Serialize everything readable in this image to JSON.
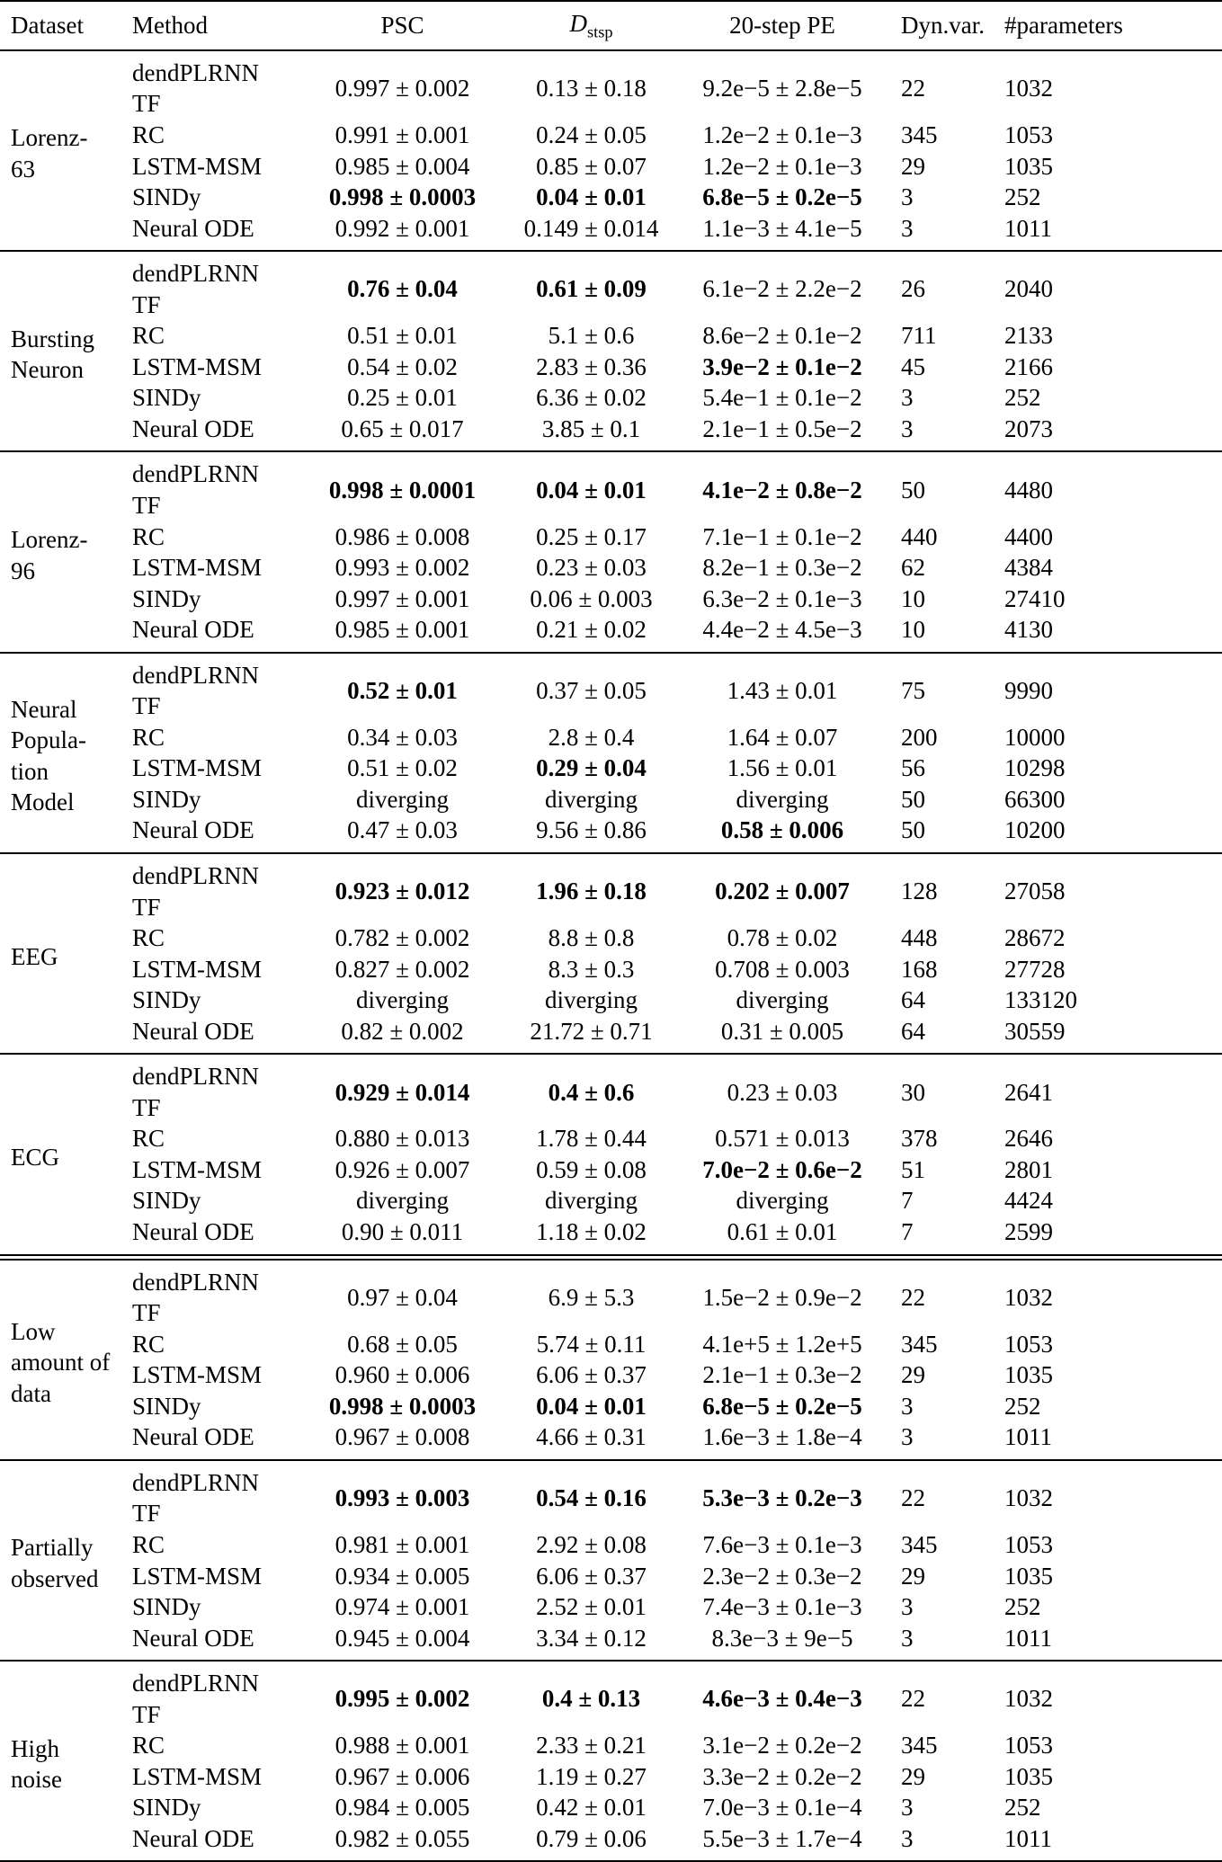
{
  "table": {
    "headers": {
      "dataset": "Dataset",
      "method": "Method",
      "psc": "PSC",
      "dstsp_main": "D",
      "dstsp_sub": "stsp",
      "pe": "20-step PE",
      "dynvar": "Dyn.var.",
      "parameters": "#parameters"
    },
    "double_rule_before_group": 6,
    "groups": [
      {
        "dataset": "Lorenz-\n63",
        "rows": [
          {
            "method": "dendPLRNN TF",
            "psc": "0.997 ± 0.002",
            "dstsp": "0.13 ± 0.18",
            "pe": "9.2e−5 ± 2.8e−5",
            "dynvar": "22",
            "params": "1032",
            "bold": [
              false,
              false,
              false
            ]
          },
          {
            "method": "RC",
            "psc": "0.991 ± 0.001",
            "dstsp": "0.24 ± 0.05",
            "pe": "1.2e−2 ± 0.1e−3",
            "dynvar": "345",
            "params": "1053",
            "bold": [
              false,
              false,
              false
            ]
          },
          {
            "method": "LSTM-MSM",
            "psc": "0.985 ± 0.004",
            "dstsp": "0.85 ± 0.07",
            "pe": "1.2e−2 ± 0.1e−3",
            "dynvar": "29",
            "params": "1035",
            "bold": [
              false,
              false,
              false
            ]
          },
          {
            "method": "SINDy",
            "psc": "0.998 ± 0.0003",
            "dstsp": "0.04 ± 0.01",
            "pe": "6.8e−5 ± 0.2e−5",
            "dynvar": "3",
            "params": "252",
            "bold": [
              true,
              true,
              true
            ]
          },
          {
            "method": "Neural ODE",
            "psc": "0.992 ± 0.001",
            "dstsp": "0.149 ± 0.014",
            "pe": "1.1e−3 ± 4.1e−5",
            "dynvar": "3",
            "params": "1011",
            "bold": [
              false,
              false,
              false
            ]
          }
        ]
      },
      {
        "dataset": "Bursting\nNeuron",
        "rows": [
          {
            "method": "dendPLRNN TF",
            "psc": "0.76 ± 0.04",
            "dstsp": "0.61 ± 0.09",
            "pe": "6.1e−2 ± 2.2e−2",
            "dynvar": "26",
            "params": "2040",
            "bold": [
              true,
              true,
              false
            ]
          },
          {
            "method": "RC",
            "psc": "0.51 ± 0.01",
            "dstsp": "5.1 ± 0.6",
            "pe": "8.6e−2 ± 0.1e−2",
            "dynvar": "711",
            "params": "2133",
            "bold": [
              false,
              false,
              false
            ]
          },
          {
            "method": "LSTM-MSM",
            "psc": "0.54 ± 0.02",
            "dstsp": "2.83 ± 0.36",
            "pe": "3.9e−2 ± 0.1e−2",
            "dynvar": "45",
            "params": "2166",
            "bold": [
              false,
              false,
              true
            ]
          },
          {
            "method": "SINDy",
            "psc": "0.25 ± 0.01",
            "dstsp": "6.36 ± 0.02",
            "pe": "5.4e−1 ± 0.1e−2",
            "dynvar": "3",
            "params": "252",
            "bold": [
              false,
              false,
              false
            ]
          },
          {
            "method": "Neural ODE",
            "psc": "0.65 ± 0.017",
            "dstsp": "3.85 ± 0.1",
            "pe": "2.1e−1 ± 0.5e−2",
            "dynvar": "3",
            "params": "2073",
            "bold": [
              false,
              false,
              false
            ]
          }
        ]
      },
      {
        "dataset": "Lorenz-\n96",
        "rows": [
          {
            "method": "dendPLRNN TF",
            "psc": "0.998 ± 0.0001",
            "dstsp": "0.04 ± 0.01",
            "pe": "4.1e−2 ± 0.8e−2",
            "dynvar": "50",
            "params": "4480",
            "bold": [
              true,
              true,
              true
            ]
          },
          {
            "method": "RC",
            "psc": "0.986 ± 0.008",
            "dstsp": "0.25 ± 0.17",
            "pe": "7.1e−1 ± 0.1e−2",
            "dynvar": "440",
            "params": "4400",
            "bold": [
              false,
              false,
              false
            ]
          },
          {
            "method": "LSTM-MSM",
            "psc": "0.993 ± 0.002",
            "dstsp": "0.23 ± 0.03",
            "pe": "8.2e−1 ± 0.3e−2",
            "dynvar": "62",
            "params": "4384",
            "bold": [
              false,
              false,
              false
            ]
          },
          {
            "method": "SINDy",
            "psc": "0.997 ± 0.001",
            "dstsp": "0.06 ± 0.003",
            "pe": "6.3e−2 ± 0.1e−3",
            "dynvar": "10",
            "params": "27410",
            "bold": [
              false,
              false,
              false
            ]
          },
          {
            "method": "Neural ODE",
            "psc": "0.985 ± 0.001",
            "dstsp": "0.21 ± 0.02",
            "pe": "4.4e−2 ± 4.5e−3",
            "dynvar": "10",
            "params": "4130",
            "bold": [
              false,
              false,
              false
            ]
          }
        ]
      },
      {
        "dataset": "Neural\nPopula-\ntion\nModel",
        "rows": [
          {
            "method": "dendPLRNN TF",
            "psc": "0.52 ± 0.01",
            "dstsp": "0.37 ± 0.05",
            "pe": "1.43 ± 0.01",
            "dynvar": "75",
            "params": "9990",
            "bold": [
              true,
              false,
              false
            ]
          },
          {
            "method": "RC",
            "psc": "0.34 ± 0.03",
            "dstsp": "2.8 ± 0.4",
            "pe": "1.64 ± 0.07",
            "dynvar": "200",
            "params": "10000",
            "bold": [
              false,
              false,
              false
            ]
          },
          {
            "method": "LSTM-MSM",
            "psc": "0.51 ± 0.02",
            "dstsp": "0.29 ± 0.04",
            "pe": "1.56 ± 0.01",
            "dynvar": "56",
            "params": "10298",
            "bold": [
              false,
              true,
              false
            ]
          },
          {
            "method": "SINDy",
            "psc": "diverging",
            "dstsp": "diverging",
            "pe": "diverging",
            "dynvar": "50",
            "params": "66300",
            "bold": [
              false,
              false,
              false
            ]
          },
          {
            "method": "Neural ODE",
            "psc": "0.47 ± 0.03",
            "dstsp": "9.56 ± 0.86",
            "pe": "0.58 ± 0.006",
            "dynvar": "50",
            "params": "10200",
            "bold": [
              false,
              false,
              true
            ]
          }
        ]
      },
      {
        "dataset": "EEG",
        "rows": [
          {
            "method": "dendPLRNN TF",
            "psc": "0.923 ± 0.012",
            "dstsp": "1.96 ± 0.18",
            "pe": "0.202 ± 0.007",
            "dynvar": "128",
            "params": "27058",
            "bold": [
              true,
              true,
              true
            ]
          },
          {
            "method": "RC",
            "psc": "0.782 ± 0.002",
            "dstsp": "8.8 ± 0.8",
            "pe": "0.78 ± 0.02",
            "dynvar": "448",
            "params": "28672",
            "bold": [
              false,
              false,
              false
            ]
          },
          {
            "method": "LSTM-MSM",
            "psc": "0.827 ± 0.002",
            "dstsp": "8.3 ± 0.3",
            "pe": "0.708 ± 0.003",
            "dynvar": "168",
            "params": "27728",
            "bold": [
              false,
              false,
              false
            ]
          },
          {
            "method": "SINDy",
            "psc": "diverging",
            "dstsp": "diverging",
            "pe": "diverging",
            "dynvar": "64",
            "params": "133120",
            "bold": [
              false,
              false,
              false
            ]
          },
          {
            "method": "Neural ODE",
            "psc": "0.82 ± 0.002",
            "dstsp": "21.72 ± 0.71",
            "pe": "0.31 ± 0.005",
            "dynvar": "64",
            "params": "30559",
            "bold": [
              false,
              false,
              false
            ]
          }
        ]
      },
      {
        "dataset": "ECG",
        "rows": [
          {
            "method": "dendPLRNN TF",
            "psc": "0.929 ± 0.014",
            "dstsp": "0.4 ± 0.6",
            "pe": "0.23 ± 0.03",
            "dynvar": "30",
            "params": "2641",
            "bold": [
              true,
              true,
              false
            ]
          },
          {
            "method": "RC",
            "psc": "0.880 ± 0.013",
            "dstsp": "1.78 ± 0.44",
            "pe": "0.571 ± 0.013",
            "dynvar": "378",
            "params": "2646",
            "bold": [
              false,
              false,
              false
            ]
          },
          {
            "method": "LSTM-MSM",
            "psc": "0.926 ± 0.007",
            "dstsp": "0.59 ± 0.08",
            "pe": "7.0e−2 ± 0.6e−2",
            "dynvar": "51",
            "params": "2801",
            "bold": [
              false,
              false,
              true
            ]
          },
          {
            "method": "SINDy",
            "psc": "diverging",
            "dstsp": "diverging",
            "pe": "diverging",
            "dynvar": "7",
            "params": "4424",
            "bold": [
              false,
              false,
              false
            ]
          },
          {
            "method": "Neural ODE",
            "psc": "0.90 ± 0.011",
            "dstsp": "1.18 ± 0.02",
            "pe": "0.61 ± 0.01",
            "dynvar": "7",
            "params": "2599",
            "bold": [
              false,
              false,
              false
            ]
          }
        ]
      },
      {
        "dataset": "Low\namount of\ndata",
        "rows": [
          {
            "method": "dendPLRNN TF",
            "psc": "0.97 ± 0.04",
            "dstsp": "6.9 ± 5.3",
            "pe": "1.5e−2 ± 0.9e−2",
            "dynvar": "22",
            "params": "1032",
            "bold": [
              false,
              false,
              false
            ]
          },
          {
            "method": "RC",
            "psc": "0.68 ± 0.05",
            "dstsp": "5.74 ± 0.11",
            "pe": "4.1e+5 ± 1.2e+5",
            "dynvar": "345",
            "params": "1053",
            "bold": [
              false,
              false,
              false
            ]
          },
          {
            "method": "LSTM-MSM",
            "psc": "0.960 ± 0.006",
            "dstsp": "6.06 ± 0.37",
            "pe": "2.1e−1 ± 0.3e−2",
            "dynvar": "29",
            "params": "1035",
            "bold": [
              false,
              false,
              false
            ]
          },
          {
            "method": "SINDy",
            "psc": "0.998 ± 0.0003",
            "dstsp": "0.04 ± 0.01",
            "pe": "6.8e−5 ± 0.2e−5",
            "dynvar": "3",
            "params": "252",
            "bold": [
              true,
              true,
              true
            ]
          },
          {
            "method": "Neural ODE",
            "psc": "0.967 ± 0.008",
            "dstsp": "4.66 ± 0.31",
            "pe": "1.6e−3 ± 1.8e−4",
            "dynvar": "3",
            "params": "1011",
            "bold": [
              false,
              false,
              false
            ]
          }
        ]
      },
      {
        "dataset": "Partially\nobserved",
        "rows": [
          {
            "method": "dendPLRNN TF",
            "psc": "0.993 ± 0.003",
            "dstsp": "0.54 ± 0.16",
            "pe": "5.3e−3 ± 0.2e−3",
            "dynvar": "22",
            "params": "1032",
            "bold": [
              true,
              true,
              true
            ]
          },
          {
            "method": "RC",
            "psc": "0.981 ± 0.001",
            "dstsp": "2.92 ± 0.08",
            "pe": "7.6e−3 ± 0.1e−3",
            "dynvar": "345",
            "params": "1053",
            "bold": [
              false,
              false,
              false
            ]
          },
          {
            "method": "LSTM-MSM",
            "psc": "0.934 ± 0.005",
            "dstsp": "6.06 ± 0.37",
            "pe": "2.3e−2 ± 0.3e−2",
            "dynvar": "29",
            "params": "1035",
            "bold": [
              false,
              false,
              false
            ]
          },
          {
            "method": "SINDy",
            "psc": "0.974 ± 0.001",
            "dstsp": "2.52 ± 0.01",
            "pe": "7.4e−3 ± 0.1e−3",
            "dynvar": "3",
            "params": "252",
            "bold": [
              false,
              false,
              false
            ]
          },
          {
            "method": "Neural ODE",
            "psc": "0.945 ± 0.004",
            "dstsp": "3.34 ± 0.12",
            "pe": "8.3e−3 ± 9e−5",
            "dynvar": "3",
            "params": "1011",
            "bold": [
              false,
              false,
              false
            ]
          }
        ]
      },
      {
        "dataset": "High\nnoise",
        "rows": [
          {
            "method": "dendPLRNN TF",
            "psc": "0.995 ± 0.002",
            "dstsp": "0.4 ± 0.13",
            "pe": "4.6e−3 ± 0.4e−3",
            "dynvar": "22",
            "params": "1032",
            "bold": [
              true,
              true,
              true
            ]
          },
          {
            "method": "RC",
            "psc": "0.988 ± 0.001",
            "dstsp": "2.33 ± 0.21",
            "pe": "3.1e−2 ± 0.2e−2",
            "dynvar": "345",
            "params": "1053",
            "bold": [
              false,
              false,
              false
            ]
          },
          {
            "method": "LSTM-MSM",
            "psc": "0.967 ± 0.006",
            "dstsp": "1.19 ± 0.27",
            "pe": "3.3e−2 ± 0.2e−2",
            "dynvar": "29",
            "params": "1035",
            "bold": [
              false,
              false,
              false
            ]
          },
          {
            "method": "SINDy",
            "psc": "0.984 ± 0.005",
            "dstsp": "0.42 ± 0.01",
            "pe": "7.0e−3 ± 0.1e−4",
            "dynvar": "3",
            "params": "252",
            "bold": [
              false,
              false,
              false
            ]
          },
          {
            "method": "Neural ODE",
            "psc": "0.982 ± 0.055",
            "dstsp": "0.79 ± 0.06",
            "pe": "5.5e−3 ± 1.7e−4",
            "dynvar": "3",
            "params": "1011",
            "bold": [
              false,
              false,
              false
            ]
          }
        ]
      }
    ]
  }
}
